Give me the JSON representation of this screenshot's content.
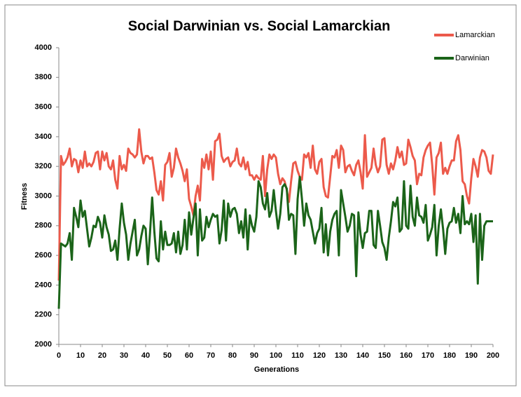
{
  "chart_data": {
    "type": "line",
    "title": "Social Darwinian vs. Social Lamarckian",
    "x_label": "Generations",
    "y_label": "Fitness",
    "x": [
      0,
      1,
      2,
      3,
      4,
      5,
      6,
      7,
      8,
      9,
      10,
      11,
      12,
      13,
      14,
      15,
      16,
      17,
      18,
      19,
      20,
      21,
      22,
      23,
      24,
      25,
      26,
      27,
      28,
      29,
      30,
      31,
      32,
      33,
      34,
      35,
      36,
      37,
      38,
      39,
      40,
      41,
      42,
      43,
      44,
      45,
      46,
      47,
      48,
      49,
      50,
      51,
      52,
      53,
      54,
      55,
      56,
      57,
      58,
      59,
      60,
      61,
      62,
      63,
      64,
      65,
      66,
      67,
      68,
      69,
      70,
      71,
      72,
      73,
      74,
      75,
      76,
      77,
      78,
      79,
      80,
      81,
      82,
      83,
      84,
      85,
      86,
      87,
      88,
      89,
      90,
      91,
      92,
      93,
      94,
      95,
      96,
      97,
      98,
      99,
      100,
      101,
      102,
      103,
      104,
      105,
      106,
      107,
      108,
      109,
      110,
      111,
      112,
      113,
      114,
      115,
      116,
      117,
      118,
      119,
      120,
      121,
      122,
      123,
      124,
      125,
      126,
      127,
      128,
      129,
      130,
      131,
      132,
      133,
      134,
      135,
      136,
      137,
      138,
      139,
      140,
      141,
      142,
      143,
      144,
      145,
      146,
      147,
      148,
      149,
      150,
      151,
      152,
      153,
      154,
      155,
      156,
      157,
      158,
      159,
      160,
      161,
      162,
      163,
      164,
      165,
      166,
      167,
      168,
      169,
      170,
      171,
      172,
      173,
      174,
      175,
      176,
      177,
      178,
      179,
      180,
      181,
      182,
      183,
      184,
      185,
      186,
      187,
      188,
      189,
      190,
      191,
      192,
      193,
      194,
      195,
      196,
      197,
      198,
      199,
      200
    ],
    "series": [
      {
        "name": "Lamarckian",
        "color": "#ec5a4b",
        "values": [
          2430,
          3270,
          3210,
          3230,
          3260,
          3320,
          3200,
          3250,
          3240,
          3160,
          3240,
          3190,
          3300,
          3200,
          3220,
          3200,
          3230,
          3290,
          3300,
          3180,
          3300,
          3240,
          3290,
          3200,
          3180,
          3240,
          3110,
          3050,
          3270,
          3180,
          3210,
          3170,
          3320,
          3290,
          3280,
          3260,
          3280,
          3450,
          3300,
          3220,
          3270,
          3270,
          3250,
          3260,
          3160,
          3040,
          3010,
          3100,
          2970,
          3210,
          3230,
          3290,
          3130,
          3190,
          3320,
          3260,
          3220,
          3170,
          3100,
          3180,
          2980,
          2930,
          2870,
          3000,
          3070,
          2970,
          3250,
          3190,
          3280,
          3180,
          3300,
          3110,
          3370,
          3380,
          3420,
          3270,
          3230,
          3250,
          3260,
          3200,
          3230,
          3240,
          3320,
          3220,
          3200,
          3260,
          3180,
          3230,
          3140,
          3140,
          3110,
          3140,
          3120,
          3110,
          3270,
          3000,
          3180,
          3280,
          3250,
          3280,
          3260,
          3150,
          3080,
          3120,
          3100,
          3040,
          2960,
          3100,
          3220,
          3230,
          3170,
          3130,
          3110,
          3280,
          3260,
          3290,
          3190,
          3340,
          3180,
          3150,
          3230,
          3250,
          3060,
          3000,
          2990,
          3130,
          3270,
          3260,
          3310,
          3190,
          3340,
          3310,
          3160,
          3200,
          3210,
          3170,
          3140,
          3210,
          3240,
          3160,
          3050,
          3410,
          3130,
          3160,
          3190,
          3320,
          3210,
          3160,
          3200,
          3380,
          3390,
          3210,
          3150,
          3220,
          3180,
          3240,
          3330,
          3260,
          3300,
          3210,
          3220,
          3380,
          3330,
          3270,
          3240,
          3080,
          3150,
          3140,
          3260,
          3310,
          3340,
          3360,
          3210,
          3010,
          3260,
          3290,
          3360,
          3150,
          3190,
          3150,
          3200,
          3240,
          3240,
          3370,
          3410,
          3310,
          3100,
          3080,
          3000,
          2950,
          3120,
          3250,
          3200,
          3130,
          3260,
          3310,
          3300,
          3260,
          3170,
          3150,
          3280
        ]
      },
      {
        "name": "Darwinian",
        "color": "#1b6419",
        "values": [
          2240,
          2680,
          2670,
          2660,
          2680,
          2750,
          2570,
          2920,
          2860,
          2790,
          2970,
          2860,
          2900,
          2780,
          2660,
          2720,
          2800,
          2790,
          2860,
          2820,
          2720,
          2870,
          2790,
          2740,
          2630,
          2640,
          2700,
          2570,
          2780,
          2950,
          2820,
          2740,
          2570,
          2680,
          2760,
          2840,
          2600,
          2640,
          2730,
          2800,
          2780,
          2540,
          2750,
          2990,
          2760,
          2580,
          2560,
          2830,
          2640,
          2760,
          2670,
          2670,
          2680,
          2750,
          2620,
          2760,
          2610,
          2670,
          2840,
          2640,
          2890,
          2740,
          2850,
          2950,
          2600,
          2910,
          2700,
          2720,
          2860,
          2790,
          2840,
          2880,
          2860,
          2870,
          2680,
          2770,
          2970,
          2700,
          2950,
          2860,
          2910,
          2920,
          2880,
          2750,
          2830,
          2720,
          2910,
          2640,
          2870,
          2800,
          2760,
          2860,
          3100,
          3060,
          2950,
          2910,
          3020,
          2860,
          2900,
          3040,
          2900,
          2780,
          2880,
          3060,
          3080,
          3050,
          2840,
          2880,
          2870,
          2610,
          2980,
          3130,
          2980,
          2800,
          2950,
          2870,
          2840,
          2760,
          2680,
          2750,
          2780,
          2920,
          2620,
          2810,
          2600,
          2760,
          2840,
          2880,
          2900,
          2600,
          3040,
          2950,
          2860,
          2760,
          2800,
          2880,
          2870,
          2460,
          2890,
          2740,
          2650,
          2750,
          2760,
          2900,
          2900,
          2670,
          2650,
          2900,
          2800,
          2690,
          2650,
          2570,
          2720,
          2830,
          2960,
          2930,
          2990,
          2760,
          2780,
          3100,
          2800,
          2780,
          3070,
          2860,
          2800,
          2990,
          2870,
          2860,
          2820,
          2940,
          2700,
          2740,
          2790,
          2940,
          2600,
          2800,
          2910,
          2780,
          2610,
          2780,
          2820,
          2830,
          2920,
          2820,
          2880,
          2750,
          3000,
          2810,
          2830,
          2810,
          2880,
          2690,
          2870,
          2410,
          2880,
          2570,
          2800,
          2830,
          2830,
          2830,
          2830
        ]
      }
    ],
    "xlim": [
      0,
      200
    ],
    "xticks": [
      0,
      10,
      20,
      30,
      40,
      50,
      60,
      70,
      80,
      90,
      100,
      110,
      120,
      130,
      140,
      150,
      160,
      170,
      180,
      190,
      200
    ],
    "ylim": [
      2000,
      4000
    ],
    "yticks": [
      2000,
      2200,
      2400,
      2600,
      2800,
      3000,
      3200,
      3400,
      3600,
      3800,
      4000
    ],
    "grid": false,
    "legend": "top-right"
  }
}
